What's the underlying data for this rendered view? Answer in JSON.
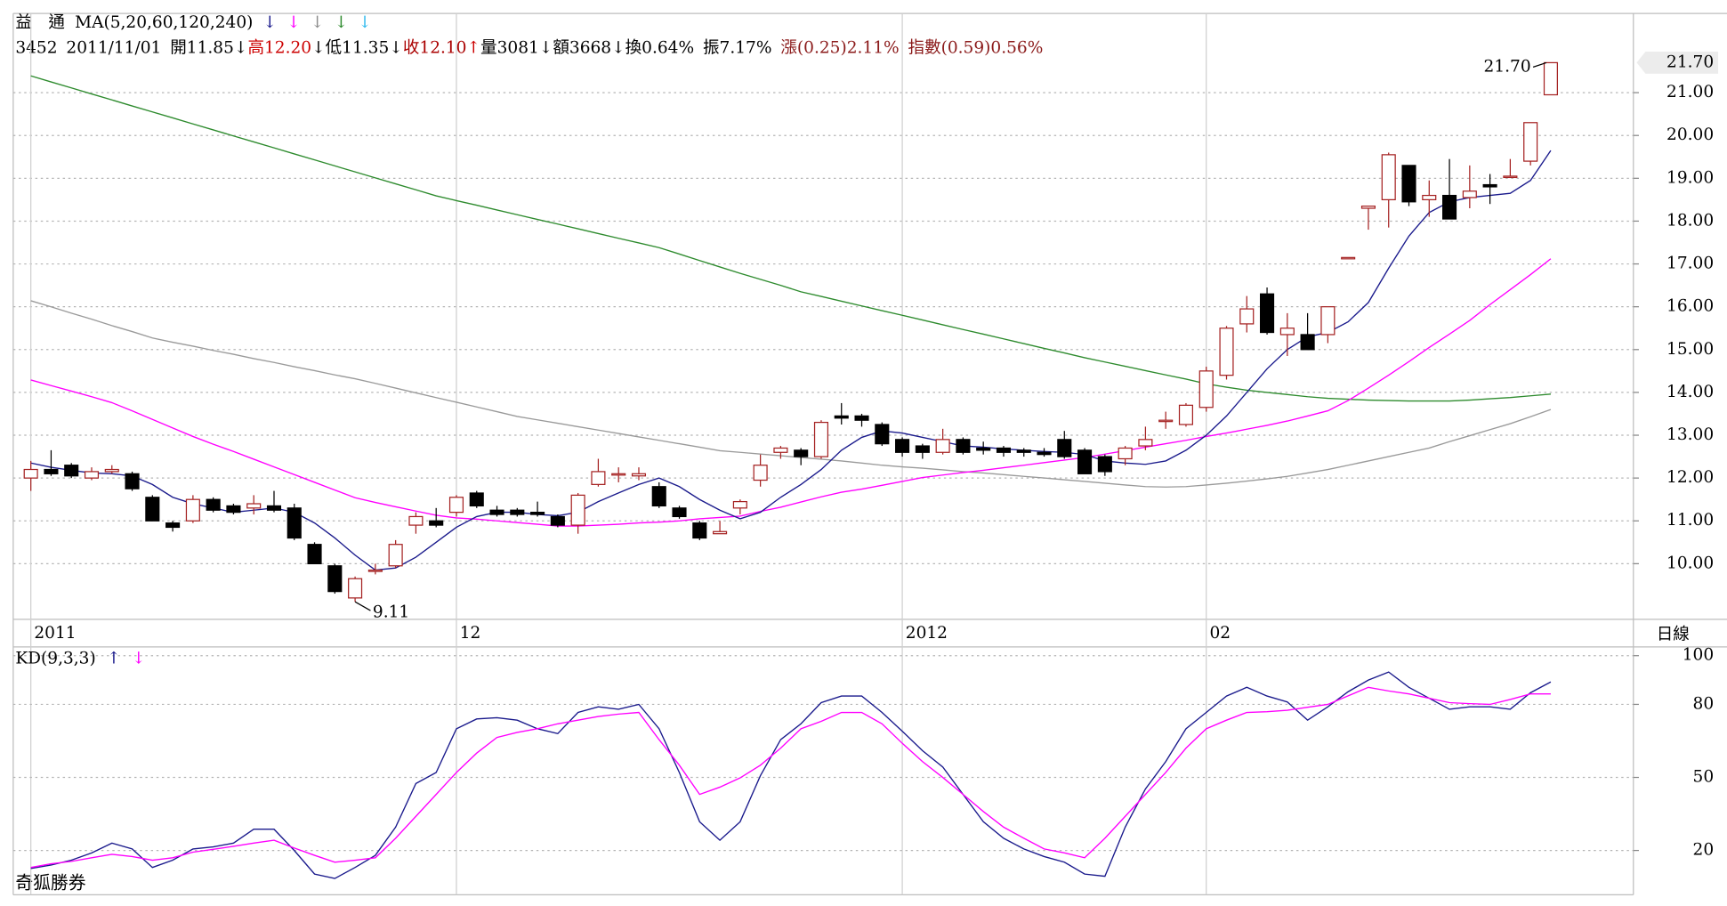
{
  "header": {
    "line1": [
      {
        "text": "益　通",
        "color": "#000000"
      },
      {
        "text": "MA(5,20,60,120,240)",
        "color": "#000000"
      },
      {
        "text": "↓",
        "color": "#1a1a8c"
      },
      {
        "text": "↓",
        "color": "#ff00ff"
      },
      {
        "text": "↓",
        "color": "#8c8c8c"
      },
      {
        "text": "↓",
        "color": "#2e8b2e"
      },
      {
        "text": "↓",
        "color": "#33bbee"
      }
    ],
    "line2": [
      {
        "text": "3452",
        "color": "#000000"
      },
      {
        "text": "2011/11/01",
        "color": "#000000"
      },
      {
        "text": "開11.85",
        "color": "#000000"
      },
      {
        "text": "↓",
        "color": "#000000"
      },
      {
        "text": "高12.20",
        "color": "#cc0000"
      },
      {
        "text": "↓",
        "color": "#000000"
      },
      {
        "text": "低11.35",
        "color": "#000000"
      },
      {
        "text": "↓",
        "color": "#000000"
      },
      {
        "text": "收12.10",
        "color": "#aa0000"
      },
      {
        "text": "↑",
        "color": "#cc0000"
      },
      {
        "text": "量3081",
        "color": "#000000"
      },
      {
        "text": "↓",
        "color": "#000000"
      },
      {
        "text": "額3668",
        "color": "#000000"
      },
      {
        "text": "↓",
        "color": "#000000"
      },
      {
        "text": "換0.64%",
        "color": "#000000"
      },
      {
        "text": "振7.17%",
        "color": "#000000"
      },
      {
        "text": "漲(0.25)2.11%",
        "color": "#8b1a1a"
      },
      {
        "text": "指數(0.59)0.56%",
        "color": "#8b1a1a"
      }
    ]
  },
  "watermark": "奇狐勝券",
  "chart_data": [
    {
      "type": "candlestick",
      "categories": [
        "2011",
        null,
        null,
        null,
        null,
        null,
        null,
        null,
        null,
        null,
        null,
        null,
        null,
        null,
        null,
        null,
        null,
        null,
        null,
        null,
        null,
        "12",
        null,
        null,
        null,
        null,
        null,
        null,
        null,
        null,
        null,
        null,
        null,
        null,
        null,
        null,
        null,
        null,
        null,
        null,
        null,
        null,
        null,
        "2012",
        null,
        null,
        null,
        null,
        null,
        null,
        null,
        null,
        null,
        null,
        null,
        null,
        null,
        null,
        "02",
        null,
        null,
        null,
        null,
        null,
        null,
        null,
        null,
        null,
        null,
        null,
        null,
        null,
        null,
        null,
        null,
        null
      ],
      "open": [
        12.0,
        12.2,
        12.3,
        12.0,
        12.15,
        12.1,
        11.55,
        10.95,
        11.0,
        11.5,
        11.35,
        11.3,
        11.35,
        11.3,
        10.45,
        9.95,
        9.2,
        9.85,
        9.95,
        10.9,
        11.0,
        11.2,
        11.65,
        11.25,
        11.25,
        11.2,
        11.1,
        10.9,
        11.85,
        12.1,
        12.05,
        11.8,
        11.3,
        10.95,
        10.7,
        11.3,
        11.95,
        12.6,
        12.65,
        12.5,
        13.45,
        13.45,
        13.25,
        12.9,
        12.75,
        12.6,
        12.9,
        12.7,
        12.7,
        12.65,
        12.6,
        12.9,
        12.65,
        12.5,
        12.45,
        12.75,
        13.35,
        13.25,
        13.65,
        14.4,
        15.6,
        16.3,
        15.35,
        15.35,
        15.35,
        17.15,
        18.3,
        18.5,
        19.3,
        18.5,
        18.6,
        18.55,
        18.85,
        19.05,
        19.4,
        20.95
      ],
      "high": [
        12.4,
        12.65,
        12.35,
        12.25,
        12.3,
        12.15,
        11.6,
        11.0,
        11.6,
        11.55,
        11.4,
        11.6,
        11.7,
        11.4,
        10.5,
        10.0,
        9.7,
        10.0,
        10.55,
        11.2,
        11.3,
        11.6,
        11.7,
        11.35,
        11.3,
        11.45,
        11.15,
        11.65,
        12.45,
        12.25,
        12.25,
        11.9,
        11.35,
        11.0,
        11.0,
        11.5,
        12.55,
        12.75,
        12.7,
        13.35,
        13.75,
        13.5,
        13.3,
        12.95,
        12.8,
        13.15,
        12.95,
        12.85,
        12.75,
        12.7,
        12.7,
        13.1,
        12.7,
        12.55,
        12.75,
        13.2,
        13.55,
        13.75,
        14.6,
        15.55,
        16.25,
        16.45,
        15.85,
        15.85,
        16.0,
        17.15,
        18.35,
        19.6,
        19.3,
        18.95,
        19.45,
        19.3,
        19.1,
        19.45,
        20.3,
        21.7
      ],
      "low": [
        11.7,
        12.05,
        12.0,
        11.95,
        12.1,
        11.7,
        11.0,
        10.75,
        10.95,
        11.2,
        11.15,
        11.15,
        11.2,
        10.55,
        10.0,
        9.3,
        9.11,
        9.75,
        9.9,
        10.7,
        10.85,
        11.1,
        11.3,
        11.1,
        11.1,
        11.1,
        10.85,
        10.7,
        11.8,
        11.9,
        11.95,
        11.3,
        11.05,
        10.55,
        10.7,
        11.15,
        11.8,
        12.45,
        12.3,
        12.45,
        13.25,
        13.2,
        12.75,
        12.5,
        12.45,
        12.55,
        12.55,
        12.55,
        12.5,
        12.5,
        12.5,
        12.45,
        12.1,
        12.05,
        12.3,
        12.65,
        13.15,
        13.2,
        13.55,
        14.3,
        15.4,
        15.35,
        14.85,
        15.0,
        15.15,
        17.15,
        17.8,
        17.85,
        18.35,
        18.1,
        18.05,
        18.3,
        18.4,
        19.05,
        19.3,
        20.95
      ],
      "close": [
        12.2,
        12.1,
        12.05,
        12.15,
        12.2,
        11.75,
        11.0,
        10.85,
        11.5,
        11.25,
        11.2,
        11.4,
        11.25,
        10.6,
        10.0,
        9.35,
        9.65,
        9.85,
        10.45,
        11.1,
        10.9,
        11.55,
        11.35,
        11.15,
        11.15,
        11.15,
        10.9,
        11.6,
        12.15,
        12.1,
        12.1,
        11.35,
        11.1,
        10.6,
        10.75,
        11.45,
        12.3,
        12.7,
        12.5,
        13.3,
        13.4,
        13.35,
        12.8,
        12.6,
        12.6,
        12.9,
        12.6,
        12.65,
        12.6,
        12.6,
        12.55,
        12.5,
        12.1,
        12.15,
        12.7,
        12.9,
        13.35,
        13.7,
        14.5,
        15.5,
        15.95,
        15.4,
        15.5,
        15.0,
        16.0,
        17.15,
        18.35,
        19.55,
        18.45,
        18.6,
        18.05,
        18.7,
        18.8,
        19.05,
        20.3,
        21.7
      ],
      "up_color": "#a52222",
      "down_color": "#000000",
      "series": [
        {
          "color": "#2e8b2e",
          "values": [
            21.39,
            21.25,
            21.11,
            20.97,
            20.83,
            20.69,
            20.55,
            20.41,
            20.27,
            20.13,
            19.99,
            19.85,
            19.71,
            19.57,
            19.43,
            19.29,
            19.15,
            19.01,
            18.87,
            18.73,
            18.59,
            18.48,
            18.37,
            18.26,
            18.15,
            18.04,
            17.93,
            17.82,
            17.71,
            17.6,
            17.49,
            17.38,
            17.23,
            17.08,
            16.93,
            16.78,
            16.64,
            16.5,
            16.35,
            16.24,
            16.13,
            16.02,
            15.91,
            15.8,
            15.69,
            15.58,
            15.47,
            15.36,
            15.25,
            15.14,
            15.03,
            14.92,
            14.81,
            14.71,
            14.61,
            14.51,
            14.41,
            14.31,
            14.2,
            14.12,
            14.05,
            14.0,
            13.95,
            13.9,
            13.86,
            13.84,
            13.82,
            13.81,
            13.8,
            13.8,
            13.8,
            13.82,
            13.85,
            13.88,
            13.92,
            13.96
          ]
        },
        {
          "color": "#9a9a9a",
          "values": [
            16.14,
            16.0,
            15.85,
            15.71,
            15.56,
            15.42,
            15.27,
            15.17,
            15.08,
            14.98,
            14.89,
            14.79,
            14.7,
            14.6,
            14.51,
            14.41,
            14.32,
            14.21,
            14.1,
            13.99,
            13.88,
            13.77,
            13.66,
            13.55,
            13.44,
            13.36,
            13.28,
            13.2,
            13.12,
            13.04,
            12.96,
            12.88,
            12.8,
            12.72,
            12.64,
            12.6,
            12.56,
            12.52,
            12.48,
            12.44,
            12.4,
            12.35,
            12.3,
            12.26,
            12.23,
            12.19,
            12.15,
            12.12,
            12.08,
            12.04,
            12.0,
            11.96,
            11.92,
            11.88,
            11.84,
            11.8,
            11.79,
            11.8,
            11.84,
            11.88,
            11.93,
            11.98,
            12.04,
            12.12,
            12.2,
            12.3,
            12.4,
            12.5,
            12.6,
            12.7,
            12.85,
            12.99,
            13.13,
            13.27,
            13.43,
            13.6
          ]
        },
        {
          "color": "#ff00ff",
          "values": [
            14.29,
            14.16,
            14.03,
            13.9,
            13.76,
            13.57,
            13.37,
            13.17,
            12.97,
            12.79,
            12.62,
            12.44,
            12.26,
            12.08,
            11.9,
            11.72,
            11.54,
            11.43,
            11.33,
            11.23,
            11.13,
            11.07,
            11.04,
            11.0,
            10.96,
            10.92,
            10.88,
            10.88,
            10.9,
            10.92,
            10.95,
            10.97,
            11.0,
            11.05,
            11.08,
            11.11,
            11.22,
            11.32,
            11.44,
            11.56,
            11.67,
            11.74,
            11.83,
            11.92,
            12.01,
            12.07,
            12.13,
            12.18,
            12.24,
            12.3,
            12.36,
            12.42,
            12.48,
            12.56,
            12.64,
            12.72,
            12.8,
            12.88,
            12.97,
            13.05,
            13.14,
            13.23,
            13.33,
            13.45,
            13.57,
            13.81,
            14.1,
            14.4,
            14.72,
            15.05,
            15.36,
            15.68,
            16.05,
            16.4,
            16.75,
            17.12
          ]
        },
        {
          "color": "#1a1a8c",
          "values": [
            12.35,
            12.25,
            12.18,
            12.12,
            12.1,
            12.05,
            11.85,
            11.55,
            11.4,
            11.3,
            11.2,
            11.25,
            11.3,
            11.2,
            10.95,
            10.6,
            10.2,
            9.85,
            9.9,
            10.15,
            10.5,
            10.85,
            11.1,
            11.2,
            11.2,
            11.15,
            11.12,
            11.2,
            11.45,
            11.65,
            11.85,
            12.0,
            11.8,
            11.5,
            11.25,
            11.05,
            11.2,
            11.55,
            11.85,
            12.2,
            12.65,
            12.95,
            13.1,
            13.05,
            12.95,
            12.85,
            12.75,
            12.72,
            12.68,
            12.65,
            12.62,
            12.6,
            12.55,
            12.4,
            12.35,
            12.32,
            12.4,
            12.65,
            13.0,
            13.45,
            14.0,
            14.55,
            15.0,
            15.3,
            15.4,
            15.65,
            16.1,
            16.9,
            17.65,
            18.2,
            18.45,
            18.55,
            18.6,
            18.65,
            18.95,
            19.65
          ]
        }
      ],
      "ylim": [
        8.7,
        22.85
      ],
      "yticks": [
        {
          "value": 10,
          "label": "10.00"
        },
        {
          "value": 11,
          "label": "11.00"
        },
        {
          "value": 12,
          "label": "12.00"
        },
        {
          "value": 13,
          "label": "13.00"
        },
        {
          "value": 14,
          "label": "14.00"
        },
        {
          "value": 15,
          "label": "15.00"
        },
        {
          "value": 16,
          "label": "16.00"
        },
        {
          "value": 17,
          "label": "17.00"
        },
        {
          "value": 18,
          "label": "18.00"
        },
        {
          "value": 19,
          "label": "19.00"
        },
        {
          "value": 20,
          "label": "20.00"
        },
        {
          "value": 21,
          "label": "21.00"
        }
      ],
      "grid": true,
      "period_label": "日線",
      "last_price": {
        "value": 21.7,
        "label": "21.70"
      },
      "annotations": {
        "high": {
          "value": 21.7,
          "label": "21.70"
        },
        "low": 9.11
      }
    },
    {
      "type": "line",
      "title": "KD(9,3,3)",
      "series": [
        {
          "color": "#1a1a8c",
          "arrow": "↑",
          "values": [
            12.6,
            14,
            16,
            19,
            23,
            20.6,
            13,
            16,
            20.6,
            21.5,
            23,
            28.7,
            28.7,
            20,
            10.3,
            8.5,
            13,
            18,
            29.6,
            47.5,
            52,
            70,
            74,
            74.5,
            73.5,
            70,
            68,
            76.7,
            79,
            78,
            80,
            70,
            52,
            31.8,
            24.2,
            31.8,
            50.7,
            65.5,
            72,
            80.7,
            83.4,
            83.4,
            76.7,
            69,
            61,
            54.3,
            43,
            31.8,
            25,
            20.6,
            17.5,
            15.2,
            10.3,
            9.4,
            29.6,
            45.3,
            56.5,
            70,
            76.7,
            83.4,
            87,
            83.4,
            81,
            73.5,
            79,
            85.2,
            90,
            93.3,
            87,
            82.5,
            78,
            79,
            79,
            78,
            84.8,
            89.2
          ]
        },
        {
          "color": "#ff00ff",
          "arrow": "↓",
          "values": [
            13,
            14.5,
            15.5,
            17,
            18.4,
            17.5,
            16,
            17,
            19.3,
            20.5,
            21.7,
            23,
            24.2,
            21,
            18,
            15.2,
            16,
            17,
            25,
            34,
            43,
            52,
            60,
            66.4,
            68.5,
            70,
            72,
            73.5,
            75,
            76,
            76.7,
            65.5,
            55,
            43,
            46,
            49.8,
            55,
            62,
            70,
            73,
            76.7,
            76.7,
            72,
            64,
            56.5,
            50,
            43,
            36,
            29.6,
            25,
            20.6,
            19,
            17,
            25,
            34,
            43,
            52,
            62,
            70,
            73.5,
            76.7,
            77,
            77.6,
            78.8,
            80,
            83.5,
            87,
            85.5,
            84.3,
            82.5,
            80.7,
            80.3,
            80,
            82,
            84.3,
            84.3
          ]
        }
      ],
      "ylim": [
        1.8,
        103.6
      ],
      "yticks": [
        20,
        50,
        80,
        100
      ],
      "grid": true
    }
  ]
}
